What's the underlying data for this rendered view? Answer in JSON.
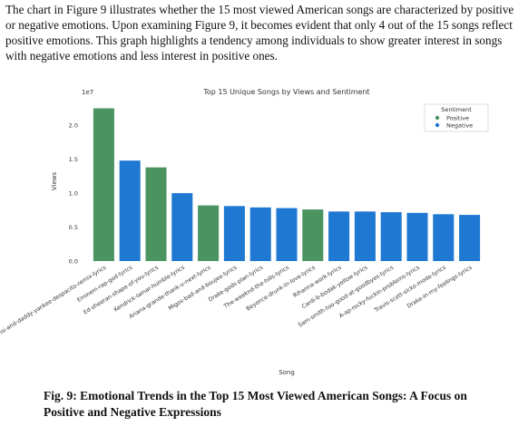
{
  "paragraph": "The chart in Figure 9 illustrates whether the 15 most viewed American songs are characterized by positive or negative emotions. Upon examining Figure 9, it becomes evident that only 4 out of the 15 songs reflect positive emotions. This graph highlights a tendency among individuals to show greater interest in songs with negative emotions and less interest in positive ones.",
  "chart_data": {
    "type": "bar",
    "title": "Top 15 Unique Songs by Views and Sentiment",
    "x_label": "Song",
    "y_label": "Views",
    "offset_label": "1e7",
    "legend_title": "Sentiment",
    "legend": "upper right",
    "grid": false,
    "categories": [
      "luis-fonsi-and-daddy-yankee-despacito-remix-lyrics",
      "Eminem-rap-god-lyrics",
      "Ed-sheeran-shape-of-you-lyrics",
      "Kendrick-lamar-humble-lyrics",
      "Ariana-grande-thank-u-next-lyrics",
      "Migos-bad-and-boujee-lyrics",
      "Drake-gods-plan-lyrics",
      "The-weeknd-the-hills-lyrics",
      "Beyonce-drunk-in-love-lyrics",
      "Rihanna-work-lyrics",
      "Cardi-b-bodak-yellow-lyrics",
      "Sam-smith-too-good-at-goodbyes-lyrics",
      "A-ap-rocky-fuckin-problems-lyrics",
      "Travis-scott-sicko-mode-lyrics",
      "Drake-in-my-feelings-lyrics"
    ],
    "series": [
      {
        "name": "Positive",
        "color": "#4b9360",
        "values": [
          2.25,
          null,
          1.38,
          null,
          0.82,
          null,
          null,
          null,
          0.76,
          null,
          null,
          null,
          null,
          null,
          null
        ]
      },
      {
        "name": "Negative",
        "color": "#1f78d1",
        "values": [
          null,
          1.48,
          null,
          1.0,
          null,
          0.81,
          0.79,
          0.78,
          null,
          0.73,
          0.73,
          0.72,
          0.71,
          0.69,
          0.68
        ]
      }
    ],
    "ylim": [
      0,
      2.35
    ],
    "yticks": [
      {
        "value": 0,
        "label": "0.0"
      },
      {
        "value": 0.5,
        "label": "0.5"
      },
      {
        "value": 1,
        "label": "1.0"
      },
      {
        "value": 1.5,
        "label": "1.5"
      },
      {
        "value": 2,
        "label": "2.0"
      }
    ]
  },
  "caption": "Fig. 9: Emotional Trends in the Top 15 Most Viewed American Songs: A Focus on Positive and Negative Expressions"
}
